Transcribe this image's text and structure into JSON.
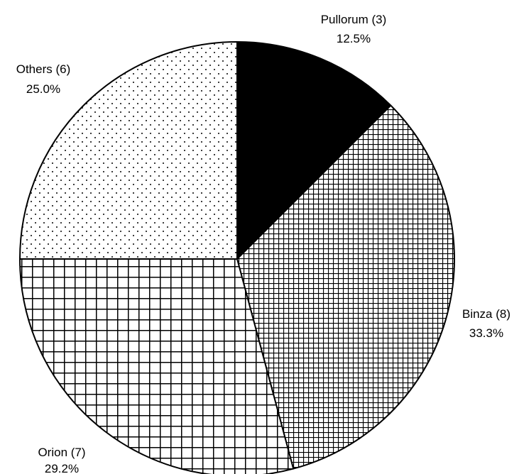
{
  "chart_data": {
    "type": "pie",
    "title": "",
    "start_angle_deg": 0,
    "direction": "clockwise",
    "legend": "none",
    "colors": {
      "outline": "#000000",
      "solid": "#000000",
      "background": "#ffffff"
    },
    "slices": [
      {
        "name": "Pullorum",
        "label": "Pullorum (3)",
        "count": 3,
        "percent": 12.5,
        "percent_label": "12.5%",
        "fill": "solid"
      },
      {
        "name": "Binza",
        "label": "Binza (8)",
        "count": 8,
        "percent": 33.3,
        "percent_label": "33.3%",
        "fill": "fine-grid"
      },
      {
        "name": "Orion",
        "label": "Orion (7)",
        "count": 7,
        "percent": 29.2,
        "percent_label": "29.2%",
        "fill": "coarse-grid"
      },
      {
        "name": "Others",
        "label": "Others (6)",
        "count": 6,
        "percent": 25.0,
        "percent_label": "25.0%",
        "fill": "dots"
      }
    ]
  }
}
